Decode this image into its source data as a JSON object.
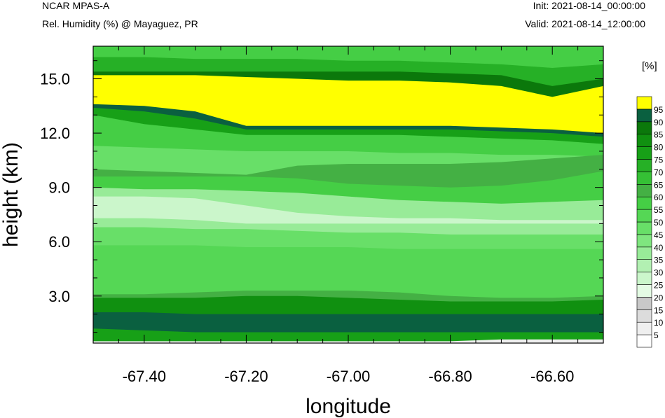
{
  "header": {
    "model": "NCAR MPAS-A",
    "field": "Rel. Humidity (%) @ Mayaguez, PR",
    "init": "Init: 2021-08-14_00:00:00",
    "valid": "Valid: 2021-08-14_12:00:00"
  },
  "chart_data": {
    "type": "heatmap",
    "title": "Rel. Humidity (%) @ Mayaguez, PR",
    "xlabel": "longitude",
    "ylabel": "height (km)",
    "xlim": [
      -67.5,
      -66.5
    ],
    "ylim": [
      0.4,
      16.8
    ],
    "x_ticks": [
      {
        "value": -67.4,
        "label": "-67.40"
      },
      {
        "value": -67.2,
        "label": "-67.20"
      },
      {
        "value": -67.0,
        "label": "-67.00"
      },
      {
        "value": -66.8,
        "label": "-66.80"
      },
      {
        "value": -66.6,
        "label": "-66.60"
      }
    ],
    "y_ticks": [
      {
        "value": 3.0,
        "label": "3.0"
      },
      {
        "value": 6.0,
        "label": "6.0"
      },
      {
        "value": 9.0,
        "label": "9.0"
      },
      {
        "value": 12.0,
        "label": "12.0"
      },
      {
        "value": 15.0,
        "label": "15.0"
      }
    ],
    "colorbar": {
      "unit": "[%]",
      "levels": [
        5,
        10,
        15,
        20,
        25,
        30,
        35,
        40,
        45,
        50,
        55,
        60,
        65,
        70,
        75,
        80,
        85,
        90,
        95
      ],
      "colors": [
        "#ffffff",
        "#efefef",
        "#dcdcdc",
        "#c8c8c8",
        "#e4fbe4",
        "#cbf6cb",
        "#b2f0b2",
        "#98eb98",
        "#7fe67f",
        "#68df68",
        "#55d755",
        "#45ce45",
        "#44b044",
        "#35c035",
        "#26b026",
        "#17a017",
        "#109010",
        "#0b780b",
        "#0a6040",
        "#ffff00"
      ]
    },
    "bands": [
      {
        "rh": 55,
        "top": [
          16.8,
          16.8,
          16.8,
          16.8,
          16.8,
          16.8,
          16.8,
          16.8,
          16.8,
          16.8,
          16.8
        ]
      },
      {
        "rh": 70,
        "top": [
          16.2,
          16.2,
          16.1,
          16.1,
          16.1,
          16.0,
          16.0,
          15.9,
          15.8,
          15.6,
          15.8
        ]
      },
      {
        "rh": 85,
        "top": [
          15.4,
          15.4,
          15.4,
          15.4,
          15.4,
          15.4,
          15.4,
          15.3,
          15.2,
          14.6,
          15.0
        ]
      },
      {
        "rh": 95,
        "top": [
          15.2,
          15.2,
          15.2,
          15.1,
          15.0,
          14.9,
          14.9,
          14.8,
          14.6,
          14.0,
          14.6
        ]
      },
      {
        "rh": 90,
        "top": [
          13.6,
          13.5,
          13.2,
          12.4,
          12.4,
          12.4,
          12.4,
          12.4,
          12.3,
          12.2,
          12.0
        ]
      },
      {
        "rh": 75,
        "top": [
          13.4,
          13.2,
          12.8,
          12.2,
          12.2,
          12.2,
          12.2,
          12.2,
          12.1,
          12.0,
          11.8
        ]
      },
      {
        "rh": 55,
        "top": [
          13.0,
          12.5,
          12.2,
          11.9,
          11.9,
          11.9,
          11.9,
          11.8,
          11.7,
          11.6,
          11.4
        ]
      },
      {
        "rh": 45,
        "top": [
          11.3,
          11.2,
          11.1,
          11.0,
          11.0,
          11.0,
          10.9,
          10.9,
          10.8,
          10.8,
          10.7
        ]
      },
      {
        "rh": 60,
        "top": [
          10.0,
          9.9,
          9.8,
          9.7,
          10.2,
          10.3,
          10.3,
          10.3,
          10.4,
          10.6,
          10.8
        ]
      },
      {
        "rh": 55,
        "top": [
          9.6,
          9.6,
          9.6,
          9.6,
          9.5,
          9.2,
          9.1,
          9.0,
          9.1,
          9.4,
          9.9
        ]
      },
      {
        "rh": 35,
        "top": [
          9.0,
          8.9,
          8.9,
          8.8,
          8.7,
          8.5,
          8.3,
          8.2,
          8.1,
          8.2,
          8.3
        ]
      },
      {
        "rh": 25,
        "top": [
          8.5,
          8.5,
          8.4,
          8.0,
          7.6,
          7.4,
          7.3,
          7.3,
          7.2,
          7.2,
          7.2
        ]
      },
      {
        "rh": 35,
        "top": [
          7.3,
          7.3,
          7.2,
          7.0,
          7.0,
          7.0,
          7.0,
          7.0,
          7.0,
          7.0,
          7.0
        ]
      },
      {
        "rh": 45,
        "top": [
          6.8,
          6.8,
          6.7,
          6.7,
          6.6,
          6.5,
          6.5,
          6.4,
          6.4,
          6.4,
          6.4
        ]
      },
      {
        "rh": 50,
        "top": [
          5.8,
          5.8,
          5.8,
          5.7,
          5.7,
          5.7,
          5.6,
          5.6,
          5.6,
          5.6,
          5.6
        ]
      },
      {
        "rh": 60,
        "top": [
          3.1,
          3.1,
          3.2,
          3.3,
          3.3,
          3.3,
          3.2,
          3.0,
          2.9,
          2.9,
          3.0
        ]
      },
      {
        "rh": 80,
        "top": [
          2.9,
          2.9,
          2.9,
          3.0,
          3.0,
          2.9,
          2.8,
          2.7,
          2.7,
          2.7,
          2.8
        ]
      },
      {
        "rh": 90,
        "top": [
          2.1,
          2.1,
          2.0,
          2.0,
          2.0,
          2.0,
          2.0,
          2.0,
          2.0,
          2.0,
          2.0
        ]
      },
      {
        "rh": 75,
        "top": [
          1.2,
          1.1,
          1.0,
          1.0,
          1.0,
          1.0,
          1.0,
          1.0,
          1.0,
          1.0,
          1.0
        ]
      },
      {
        "rh": 5,
        "top": [
          0.5,
          0.5,
          0.5,
          0.5,
          0.5,
          0.5,
          0.5,
          0.5,
          0.6,
          0.6,
          0.6
        ]
      }
    ]
  }
}
